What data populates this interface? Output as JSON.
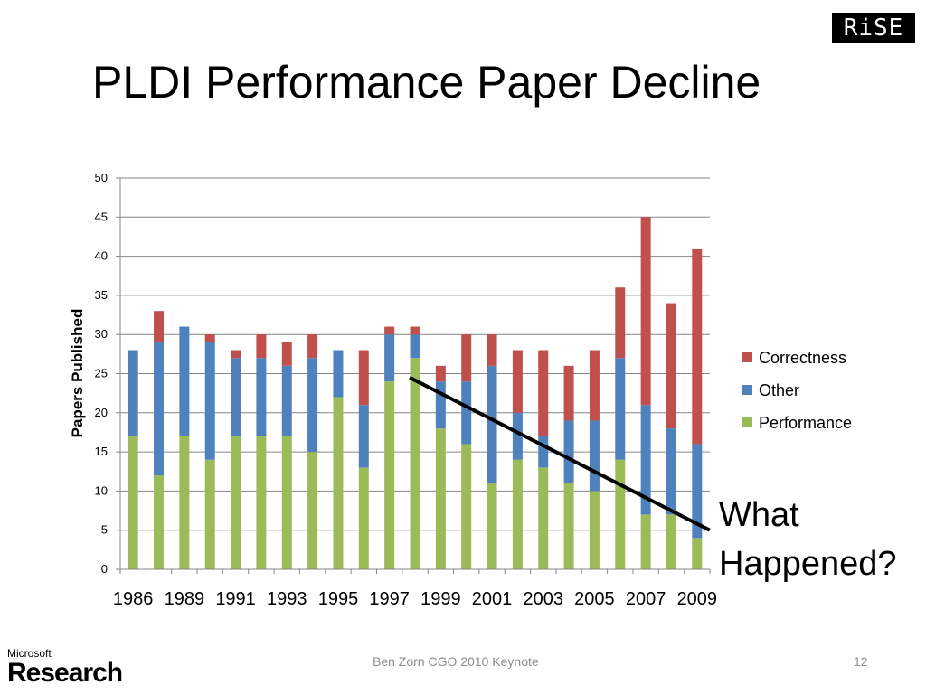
{
  "slide": {
    "title": "PLDI Performance Paper Decline",
    "logo_text": "RiSE",
    "footer": "Ben Zorn CGO 2010 Keynote",
    "page_number": "12",
    "ms_logo_top": "Microsoft",
    "ms_logo_bottom": "Research",
    "annotation": [
      "What",
      "Happened?"
    ]
  },
  "chart_data": {
    "type": "bar",
    "stacked": true,
    "ylabel": "Papers Published",
    "ylim": [
      0,
      50
    ],
    "yticks": [
      0,
      5,
      10,
      15,
      20,
      25,
      30,
      35,
      40,
      45,
      50
    ],
    "grid": true,
    "legend_position": "right",
    "x_tick_labels": [
      "1986",
      "1989",
      "1991",
      "1993",
      "1995",
      "1997",
      "1999",
      "2001",
      "2003",
      "2005",
      "2007",
      "2009"
    ],
    "categories": [
      "1986",
      "1988",
      "1989",
      "1990",
      "1991",
      "1992",
      "1993",
      "1994",
      "1995",
      "1996",
      "1997",
      "1998",
      "1999",
      "2000",
      "2001",
      "2002",
      "2003",
      "2004",
      "2005",
      "2006",
      "2007",
      "2008",
      "2009"
    ],
    "series": [
      {
        "name": "Performance",
        "color": "#9bbb59",
        "values": [
          17,
          12,
          17,
          14,
          17,
          17,
          17,
          15,
          22,
          13,
          24,
          27,
          18,
          16,
          11,
          14,
          13,
          11,
          10,
          14,
          7,
          7,
          4
        ]
      },
      {
        "name": "Other",
        "color": "#4f81bd",
        "values": [
          11,
          17,
          14,
          15,
          10,
          10,
          9,
          12,
          6,
          8,
          6,
          3,
          6,
          8,
          15,
          6,
          4,
          8,
          9,
          13,
          14,
          11,
          12
        ]
      },
      {
        "name": "Correctness",
        "color": "#c0504d",
        "values": [
          0,
          4,
          0,
          1,
          1,
          3,
          3,
          3,
          0,
          7,
          1,
          1,
          2,
          6,
          4,
          8,
          11,
          7,
          9,
          9,
          24,
          16,
          25
        ]
      }
    ],
    "legend_order": [
      "Correctness",
      "Other",
      "Performance"
    ],
    "trend_line": {
      "from": [
        "1998",
        24.5
      ],
      "to": [
        "2009",
        5
      ]
    }
  }
}
